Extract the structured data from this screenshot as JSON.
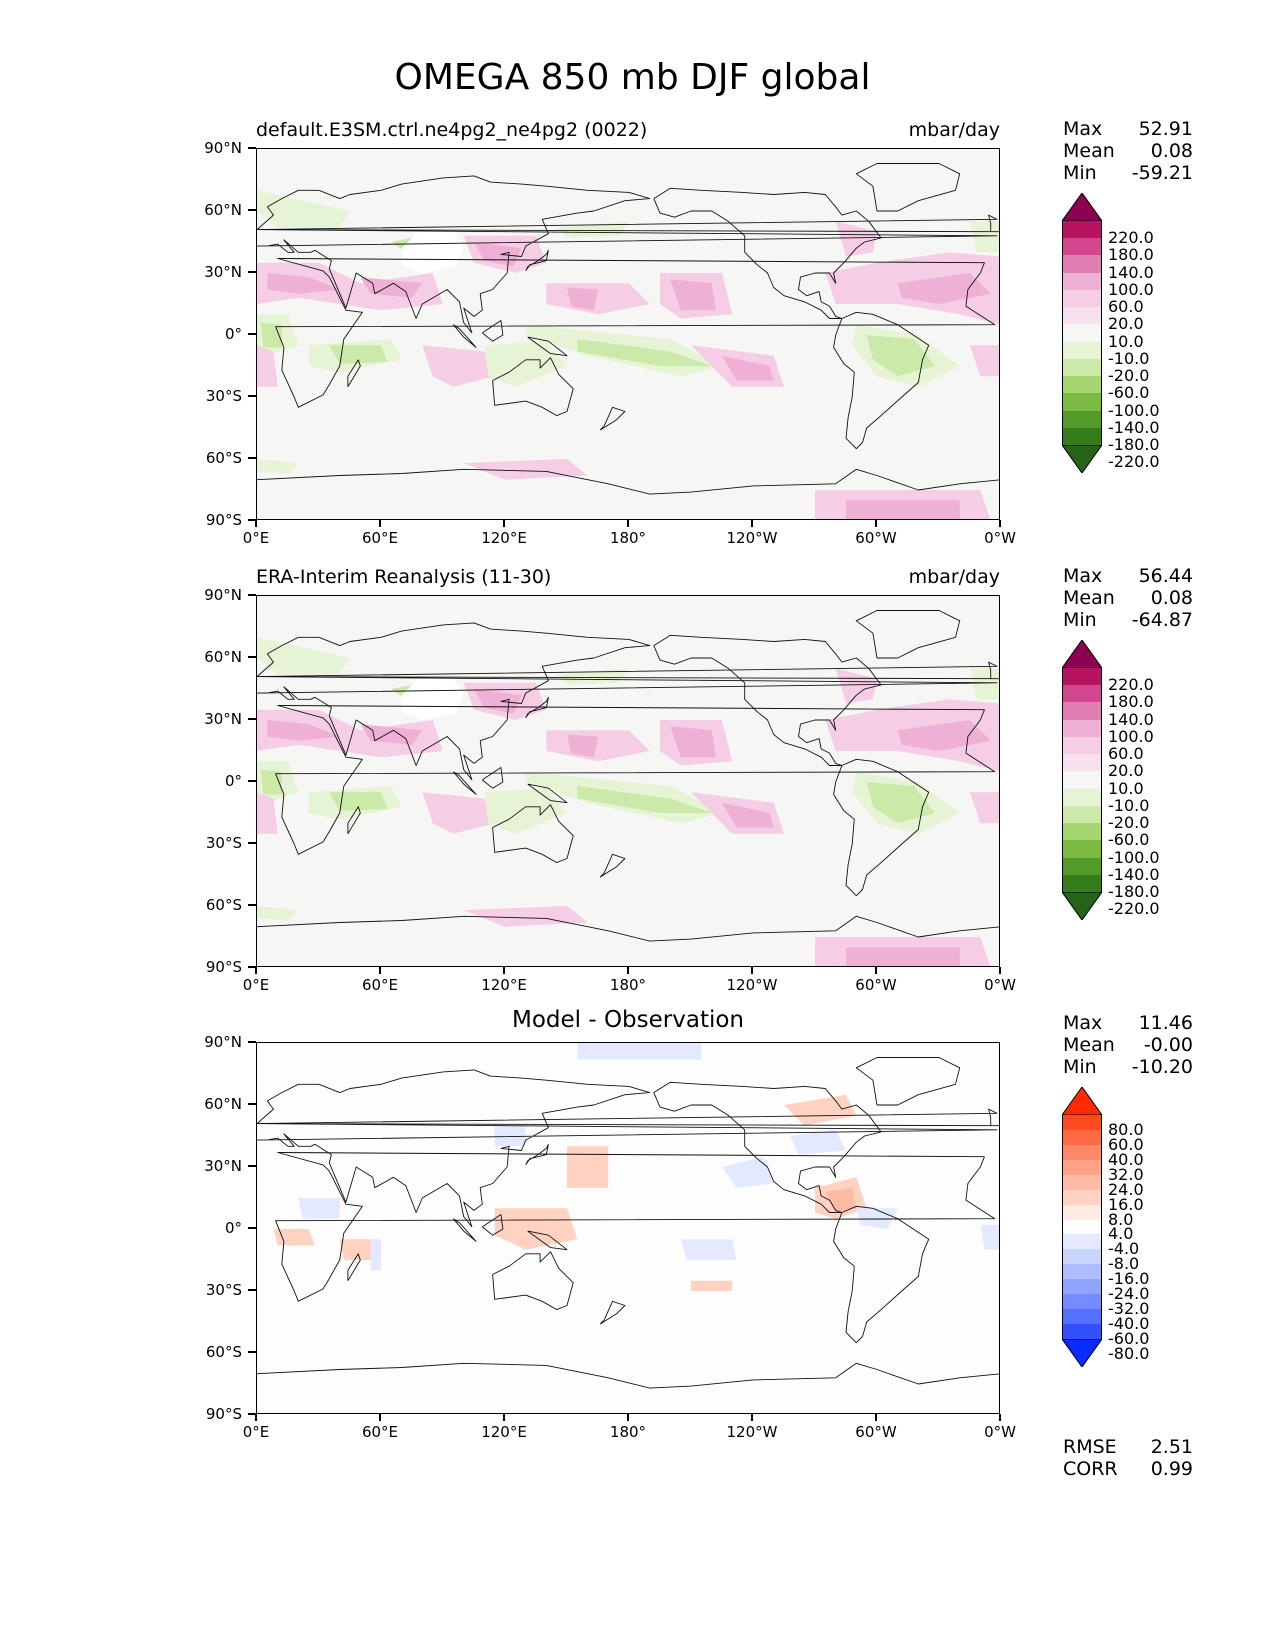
{
  "figure": {
    "title": "OMEGA 850 mb DJF global"
  },
  "axes": {
    "y_labels": [
      "90°N",
      "60°N",
      "30°N",
      "0°",
      "30°S",
      "60°S",
      "90°S"
    ],
    "x_labels": [
      "0°E",
      "60°E",
      "120°E",
      "180°",
      "120°W",
      "60°W",
      "0°W"
    ]
  },
  "panels": [
    {
      "title_left": "default.E3SM.ctrl.ne4pg2_ne4pg2 (0022)",
      "title_right": "mbar/day",
      "title_center": "",
      "stats": [
        {
          "k": "Max",
          "v": "52.91"
        },
        {
          "k": "Mean",
          "v": "0.08"
        },
        {
          "k": "Min",
          "v": "-59.21"
        }
      ],
      "colorbar": {
        "labels": [
          "220.0",
          "180.0",
          "140.0",
          "100.0",
          "60.0",
          "20.0",
          "10.0",
          "-10.0",
          "-20.0",
          "-60.0",
          "-100.0",
          "-140.0",
          "-180.0",
          "-220.0"
        ],
        "colors": [
          "#8e0152",
          "#b7145f",
          "#d3478f",
          "#e17fb5",
          "#efb0d6",
          "#f5cde4",
          "#f8e1ee",
          "#f6f6f5",
          "#e6f4d5",
          "#cbe9a9",
          "#a6d670",
          "#7cbb42",
          "#539b29",
          "#347d1a",
          "#276419"
        ]
      }
    },
    {
      "title_left": "ERA-Interim Reanalysis (11-30)",
      "title_right": "mbar/day",
      "title_center": "",
      "stats": [
        {
          "k": "Max",
          "v": "56.44"
        },
        {
          "k": "Mean",
          "v": "0.08"
        },
        {
          "k": "Min",
          "v": "-64.87"
        }
      ],
      "colorbar": {
        "labels": [
          "220.0",
          "180.0",
          "140.0",
          "100.0",
          "60.0",
          "20.0",
          "10.0",
          "-10.0",
          "-20.0",
          "-60.0",
          "-100.0",
          "-140.0",
          "-180.0",
          "-220.0"
        ],
        "colors": [
          "#8e0152",
          "#b7145f",
          "#d3478f",
          "#e17fb5",
          "#efb0d6",
          "#f5cde4",
          "#f8e1ee",
          "#f6f6f5",
          "#e6f4d5",
          "#cbe9a9",
          "#a6d670",
          "#7cbb42",
          "#539b29",
          "#347d1a",
          "#276419"
        ]
      }
    },
    {
      "title_left": "",
      "title_right": "",
      "title_center": "Model - Observation",
      "stats": [
        {
          "k": "Max",
          "v": "11.46"
        },
        {
          "k": "Mean",
          "v": "-0.00"
        },
        {
          "k": "Min",
          "v": "-10.20"
        }
      ],
      "colorbar": {
        "labels": [
          "80.0",
          "60.0",
          "40.0",
          "32.0",
          "24.0",
          "16.0",
          "8.0",
          "4.0",
          "-4.0",
          "-8.0",
          "-16.0",
          "-24.0",
          "-32.0",
          "-40.0",
          "-60.0",
          "-80.0"
        ],
        "colors": [
          "#ff2a00",
          "#ff4a1f",
          "#ff6a45",
          "#ff8866",
          "#ffa387",
          "#ffbba5",
          "#ffd2c2",
          "#ffebe3",
          "#fdfdfd",
          "#e3e9ff",
          "#c9d4ff",
          "#adbdff",
          "#90a5ff",
          "#748cff",
          "#5470ff",
          "#3350ff",
          "#0a2aff"
        ]
      },
      "extra_stats": [
        {
          "k": "RMSE",
          "v": "2.51"
        },
        {
          "k": "CORR",
          "v": "0.99"
        }
      ]
    }
  ]
}
